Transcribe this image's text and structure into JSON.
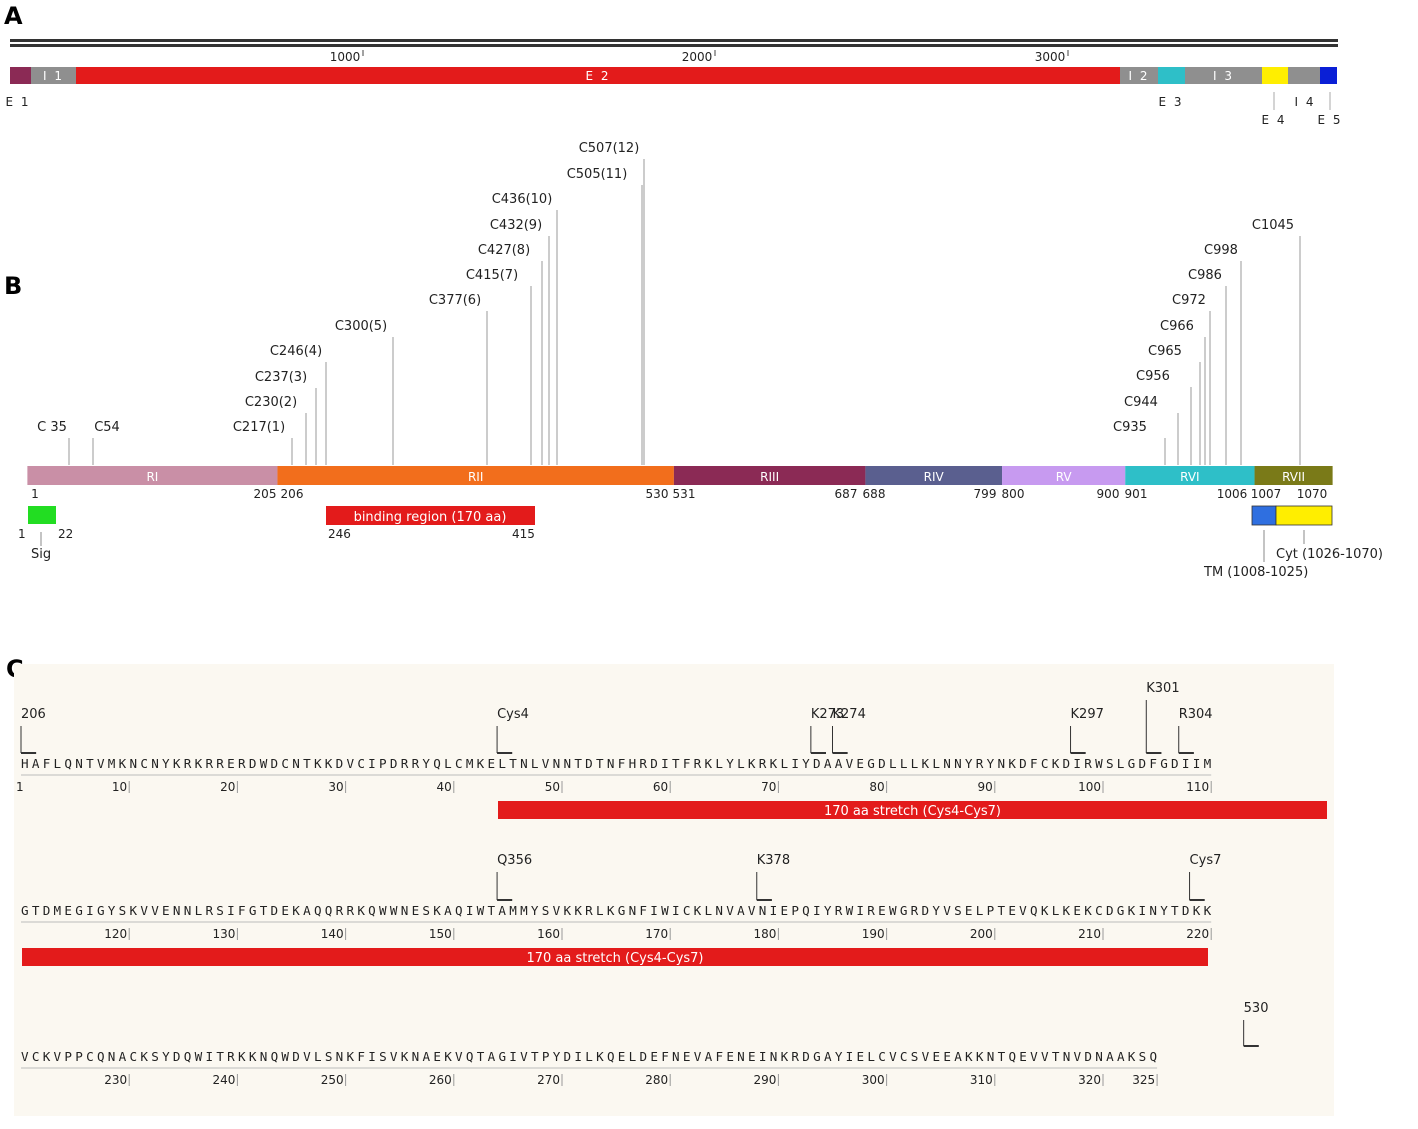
{
  "panels": {
    "a": "A",
    "b": "B",
    "c": "C"
  },
  "panel_a": {
    "ticks": [
      {
        "label": "1000"
      },
      {
        "label": "2000"
      },
      {
        "label": "3000"
      }
    ],
    "segments": [
      {
        "label": "",
        "color": "#8b2a55"
      },
      {
        "label": "I 1",
        "color": "#8f8f8f"
      },
      {
        "label": "E 2",
        "color": "#e31b1b"
      },
      {
        "label": "I 2",
        "color": "#8f8f8f"
      },
      {
        "label": "",
        "color": "#2ebfc8"
      },
      {
        "label": "I 3",
        "color": "#8f8f8f"
      },
      {
        "label": "",
        "color": "#ffee00"
      },
      {
        "label": "",
        "color": "#8f8f8f"
      },
      {
        "label": "",
        "color": "#0a1fd6"
      }
    ],
    "below_labels": [
      {
        "text": "E 1"
      },
      {
        "text": "E 3"
      },
      {
        "text": "I 4"
      },
      {
        "text": "E 4"
      },
      {
        "text": "E 5"
      }
    ]
  },
  "panel_b": {
    "regions": [
      {
        "name": "RI",
        "color": "#c98fa6"
      },
      {
        "name": "RII",
        "color": "#f26e1c"
      },
      {
        "name": "RIII",
        "color": "#8b2a55"
      },
      {
        "name": "RIV",
        "color": "#5a5f8f"
      },
      {
        "name": "RV",
        "color": "#c79af0"
      },
      {
        "name": "RVI",
        "color": "#2ebfc8"
      },
      {
        "name": "RVII",
        "color": "#7a7a18"
      }
    ],
    "boundary_numbers": [
      "1",
      "205",
      "206",
      "530",
      "531",
      "687",
      "688",
      "799",
      "800",
      "900",
      "901",
      "1006",
      "1007",
      "1070"
    ],
    "cysteines": [
      "C 35",
      "C54",
      "C217(1)",
      "C230(2)",
      "C237(3)",
      "C246(4)",
      "C300(5)",
      "C377(6)",
      "C415(7)",
      "C427(8)",
      "C432(9)",
      "C436(10)",
      "C505(11)",
      "C507(12)",
      "C935",
      "C944",
      "C956",
      "C965",
      "C966",
      "C972",
      "C986",
      "C998",
      "C1045"
    ],
    "sig": {
      "label": "Sig",
      "start": "1",
      "end": "22",
      "color": "#22dd22"
    },
    "binding": {
      "label": "binding region (170 aa)",
      "start": "246",
      "end": "415",
      "color": "#e31b1b"
    },
    "tm": {
      "label": "TM (1008-1025)",
      "color": "#2f6fe0"
    },
    "cyt": {
      "label": "Cyt (1026-1070)",
      "color": "#ffee00"
    }
  },
  "panel_c": {
    "rows": [
      {
        "seq": "HAFLQNTVMKNCNYKRKRRERDWDCNTKKDVCIPDRRYQLCMKELTNLVNNTDTNFHRDITFRKLYLKRKLIYDAAVEGDLLLKLNNYRYNKDFCKDIRWSLGDFGDIIM",
        "start_label": "1",
        "ticks": [
          "10",
          "20",
          "30",
          "40",
          "50",
          "60",
          "70",
          "80",
          "90",
          "100",
          "110"
        ]
      },
      {
        "seq": "GTDMEGIGYSKVVENNLRSIFGTDEKAQQRRKQWWNESKAQIWTAMMYSVKKRLKGNFIWICKLNVAVNIEPQIYRWIREWGRDYVSELPTEVQKLKEKCDGKINYTDKK",
        "start_label": "",
        "ticks": [
          "120",
          "130",
          "140",
          "150",
          "160",
          "170",
          "180",
          "190",
          "200",
          "210",
          "220"
        ]
      },
      {
        "seq": "VCKVPPCQNACKSYDQWITRKKNQWDVLSNKFISVKNAEKVQTAGIVTPYDILKQELDEFNEVAFENEINKRDGAYIELCVCSVEEAKKNTQEVVTNVDNAAKSQ",
        "start_label": "",
        "ticks": [
          "230",
          "240",
          "250",
          "260",
          "270",
          "280",
          "290",
          "300",
          "310",
          "320",
          "325"
        ]
      }
    ],
    "markers_row1": [
      "206",
      "Cys4",
      "K273",
      "K274",
      "K297",
      "K301",
      "R304"
    ],
    "markers_row2": [
      "Q356",
      "K378",
      "Cys7"
    ],
    "markers_row3": [
      "530"
    ],
    "stretch_label": "170 aa stretch (Cys4-Cys7)",
    "stretch_color": "#e31b1b"
  }
}
